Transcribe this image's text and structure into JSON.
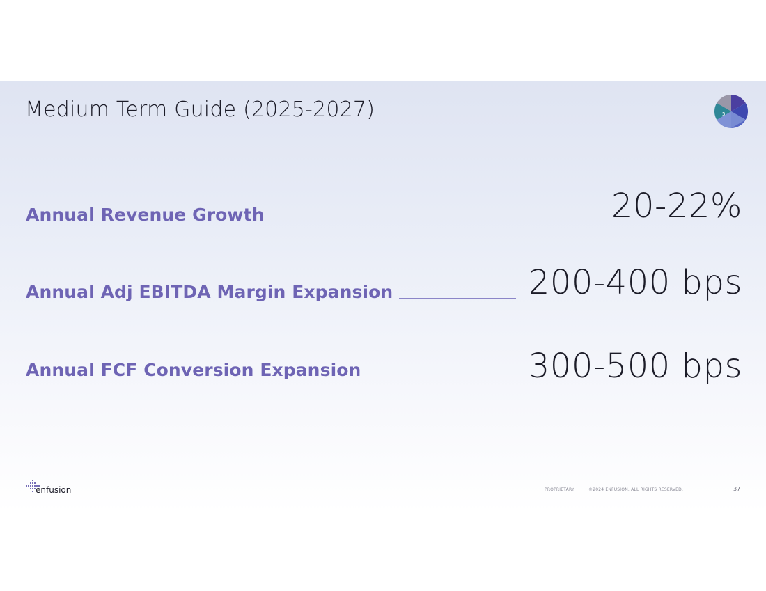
{
  "slide": {
    "title": "Medium Term Guide (2025-2027)",
    "badge": {
      "number": "5",
      "colors": [
        "#9a97a8",
        "#4b3fa0",
        "#3d48b0",
        "#7f92d6",
        "#2f8797",
        "#c2c0cc"
      ]
    }
  },
  "metrics": [
    {
      "label": "Annual Revenue Growth",
      "value": "20-22%"
    },
    {
      "label": "Annual Adj EBITDA Margin Expansion",
      "value": "200-400 bps"
    },
    {
      "label": "Annual FCF Conversion Expansion",
      "value": "300-500 bps"
    }
  ],
  "footer": {
    "logo_text": "enfusion",
    "proprietary": "PROPRIETARY",
    "copyright": "©2024 ENFUSION. ALL RIGHTS RESERVED.",
    "page_number": "37"
  },
  "colors": {
    "accent": "#6e64b4",
    "line": "#8c86c8",
    "text": "#1c1c28"
  }
}
